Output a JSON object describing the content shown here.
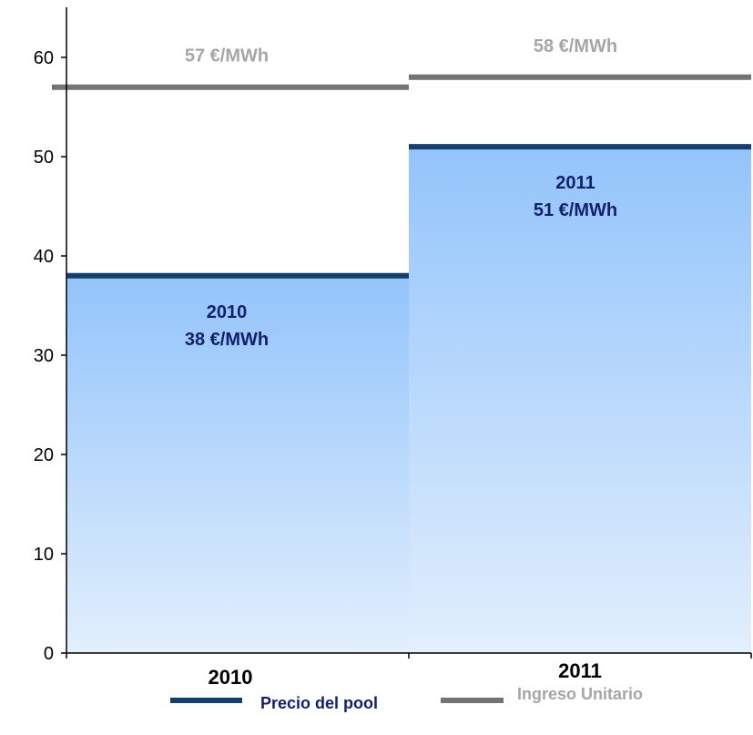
{
  "chart_data": {
    "type": "bar",
    "categories": [
      "2010",
      "2011"
    ],
    "series": [
      {
        "name": "Precio del pool",
        "values": [
          38,
          51
        ],
        "labels": [
          [
            "2010",
            "38 €/MWh"
          ],
          [
            "2011",
            "51 €/MWh"
          ]
        ],
        "color": "#173f6b",
        "label_color": "#14206e",
        "fill_top": "#93c4fb",
        "fill_bottom": "#e2effd"
      },
      {
        "name": "Ingreso Unitario",
        "values": [
          57,
          58
        ],
        "labels": [
          "57 €/MWh",
          "58 €/MWh"
        ],
        "color": "#737373",
        "label_color": "#a6a6a6"
      }
    ],
    "yticks": [
      "0",
      "10",
      "20",
      "30",
      "40",
      "50",
      "60"
    ],
    "ylim": [
      0,
      65
    ],
    "grid": false,
    "legend_position": "bottom"
  }
}
